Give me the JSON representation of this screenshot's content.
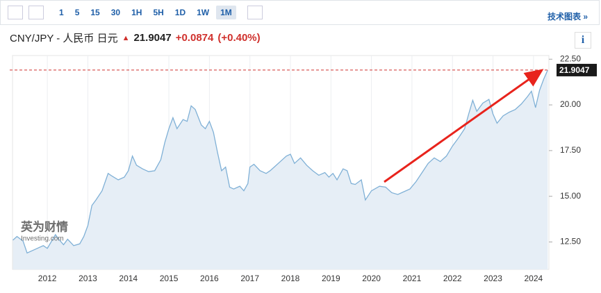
{
  "toolbar": {
    "intervals": [
      "1",
      "5",
      "15",
      "30",
      "1H",
      "5H",
      "1D",
      "1W",
      "1M"
    ],
    "active": "1M",
    "link": "技术图表 »"
  },
  "header": {
    "pair": "CNY/JPY - 人民币 日元",
    "price": "21.9047",
    "change": "+0.0874",
    "change_pct": "(+0.40%)",
    "info": "i"
  },
  "watermark": {
    "brand": "英为财情",
    "site": "Investing.com"
  },
  "chart_data": {
    "type": "area",
    "color": "#7fb0d6",
    "fill": "#e6eef6",
    "grid": true,
    "last_price": 21.9047,
    "last_price_color": "#d0312d",
    "xlim": [
      2011.14,
      2024.38
    ],
    "xticks": [
      2012,
      2013,
      2014,
      2015,
      2016,
      2017,
      2018,
      2019,
      2020,
      2021,
      2022,
      2023,
      2024
    ],
    "ylim": [
      11,
      22.7
    ],
    "yticks": [
      {
        "value": 12.5,
        "label": "12.50"
      },
      {
        "value": 15,
        "label": "15.00"
      },
      {
        "value": 17.5,
        "label": "17.50"
      },
      {
        "value": 20,
        "label": "20.00"
      },
      {
        "value": 22.5,
        "label": "22.50"
      }
    ],
    "x": [
      2011.15,
      2011.25,
      2011.4,
      2011.5,
      2011.7,
      2011.9,
      2012.0,
      2012.2,
      2012.3,
      2012.4,
      2012.5,
      2012.65,
      2012.8,
      2012.9,
      2013.0,
      2013.1,
      2013.2,
      2013.35,
      2013.5,
      2013.6,
      2013.75,
      2013.9,
      2014.0,
      2014.1,
      2014.2,
      2014.35,
      2014.5,
      2014.65,
      2014.8,
      2014.9,
      2015.0,
      2015.1,
      2015.2,
      2015.35,
      2015.45,
      2015.55,
      2015.65,
      2015.8,
      2015.9,
      2016.0,
      2016.1,
      2016.2,
      2016.3,
      2016.4,
      2016.5,
      2016.6,
      2016.75,
      2016.85,
      2016.95,
      2017.0,
      2017.1,
      2017.25,
      2017.4,
      2017.5,
      2017.6,
      2017.75,
      2017.9,
      2018.0,
      2018.1,
      2018.25,
      2018.4,
      2018.55,
      2018.7,
      2018.85,
      2018.95,
      2019.05,
      2019.15,
      2019.3,
      2019.4,
      2019.5,
      2019.6,
      2019.75,
      2019.85,
      2020.0,
      2020.2,
      2020.35,
      2020.5,
      2020.65,
      2020.8,
      2020.95,
      2021.1,
      2021.25,
      2021.4,
      2021.55,
      2021.7,
      2021.85,
      2022.0,
      2022.15,
      2022.3,
      2022.4,
      2022.5,
      2022.6,
      2022.75,
      2022.9,
      2023.0,
      2023.1,
      2023.25,
      2023.4,
      2023.55,
      2023.7,
      2023.85,
      2023.95,
      2024.05,
      2024.15,
      2024.25,
      2024.35
    ],
    "values": [
      12.6,
      12.8,
      12.55,
      11.9,
      12.1,
      12.3,
      12.15,
      12.9,
      12.6,
      12.35,
      12.65,
      12.3,
      12.4,
      12.8,
      13.4,
      14.5,
      14.8,
      15.3,
      16.25,
      16.1,
      15.9,
      16.05,
      16.4,
      17.2,
      16.7,
      16.5,
      16.35,
      16.4,
      17.0,
      17.95,
      18.7,
      19.3,
      18.7,
      19.2,
      19.1,
      19.95,
      19.75,
      18.9,
      18.7,
      19.1,
      18.5,
      17.4,
      16.4,
      16.6,
      15.5,
      15.4,
      15.55,
      15.3,
      15.7,
      16.6,
      16.75,
      16.4,
      16.25,
      16.4,
      16.6,
      16.9,
      17.2,
      17.3,
      16.8,
      17.1,
      16.7,
      16.4,
      16.15,
      16.3,
      16.05,
      16.25,
      15.9,
      16.5,
      16.4,
      15.7,
      15.65,
      15.9,
      14.8,
      15.3,
      15.55,
      15.5,
      15.2,
      15.1,
      15.25,
      15.4,
      15.8,
      16.3,
      16.8,
      17.1,
      16.9,
      17.2,
      17.75,
      18.2,
      18.7,
      19.5,
      20.25,
      19.65,
      20.1,
      20.3,
      19.5,
      19.0,
      19.4,
      19.6,
      19.75,
      20.05,
      20.45,
      20.75,
      19.85,
      20.8,
      21.4,
      21.9
    ]
  }
}
